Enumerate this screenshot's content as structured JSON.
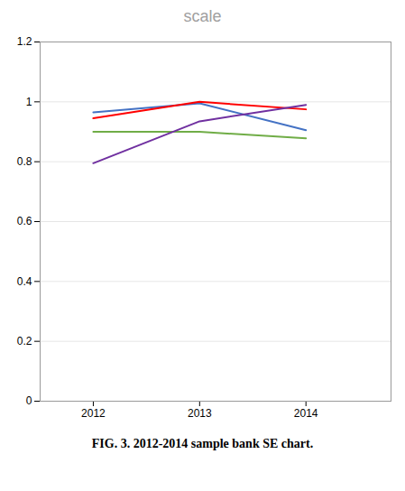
{
  "chart_data": {
    "type": "line",
    "title": "scale",
    "caption": "FIG. 3. 2012-2014 sample bank SE chart.",
    "x": [
      2012,
      2013,
      2014
    ],
    "series": [
      {
        "color": "#4472C4",
        "values": [
          0.965,
          0.995,
          0.905
        ]
      },
      {
        "color": "#FF0000",
        "values": [
          0.945,
          1.0,
          0.975
        ]
      },
      {
        "color": "#70AD47",
        "values": [
          0.9,
          0.9,
          0.878
        ]
      },
      {
        "color": "#7030A0",
        "values": [
          0.795,
          0.935,
          0.99
        ]
      }
    ],
    "xlim": [
      2011.5,
      2014.8
    ],
    "xticks": [
      2012,
      2013,
      2014
    ],
    "ylim": [
      0,
      1.2
    ],
    "yticks": [
      0,
      0.2,
      0.4,
      0.6,
      0.8,
      1,
      1.2
    ],
    "grid": true
  }
}
